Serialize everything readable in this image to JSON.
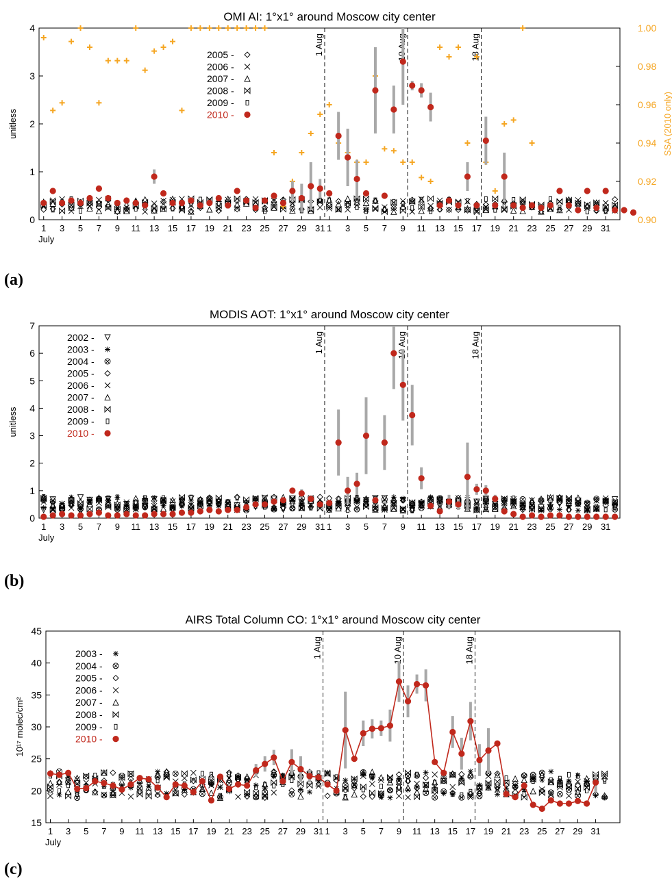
{
  "figure": {
    "panel_labels": [
      "(a)",
      "(b)",
      "(c)"
    ],
    "colors": {
      "red_2010": "#c0281c",
      "ssa_orange": "#f5a623",
      "errorbar_grey": "#a8a8a8",
      "axis": "#000000"
    }
  },
  "chart_data": [
    {
      "type": "scatter",
      "title": "OMI AI: 1°x1° around Moscow city center",
      "ylabel": "unitless",
      "y2label": "SSA (2010 only)",
      "ylim": [
        0,
        4
      ],
      "y2lim": [
        0.9,
        1.0
      ],
      "y_ticks": [
        "0",
        "1",
        "2",
        "3",
        "4"
      ],
      "y2_ticks": [
        "0.90",
        "0.92",
        "0.94",
        "0.96",
        "0.98",
        "1.00"
      ],
      "x_ticks": [
        "1",
        "3",
        "5",
        "7",
        "9",
        "11",
        "13",
        "15",
        "17",
        "19",
        "21",
        "23",
        "25",
        "27",
        "29",
        "31",
        "1",
        "3",
        "5",
        "7",
        "9",
        "11",
        "13",
        "15",
        "17",
        "19",
        "21",
        "23",
        "25",
        "27",
        "29",
        "31"
      ],
      "x_sub": "July",
      "event_lines": [
        "1 Aug",
        "10 Aug",
        "18 Aug"
      ],
      "legend": [
        {
          "year": "2005",
          "symbol": "◇"
        },
        {
          "year": "2006",
          "symbol": "X"
        },
        {
          "year": "2007",
          "symbol": "△"
        },
        {
          "year": "2008",
          "symbol": "⋈"
        },
        {
          "year": "2009",
          "symbol": "▯"
        },
        {
          "year": "2010",
          "symbol": "●"
        }
      ],
      "series_2010": [
        0.35,
        0.6,
        0.35,
        0.4,
        0.35,
        0.45,
        0.65,
        0.45,
        0.35,
        0.4,
        0.35,
        0.3,
        0.9,
        0.55,
        0.35,
        0.35,
        0.4,
        0.3,
        0.35,
        0.45,
        0.3,
        0.6,
        0.4,
        0.25,
        0.4,
        0.5,
        0.35,
        0.6,
        0.45,
        0.7,
        0.65,
        0.55,
        1.75,
        1.3,
        0.85,
        0.55,
        2.7,
        0.5,
        2.3,
        3.3,
        2.8,
        2.7,
        2.35,
        0.3,
        0.4,
        0.3,
        0.9,
        0.3,
        1.65,
        0.3,
        0.9,
        0.3,
        0.25,
        0.3,
        0.25,
        0.3,
        0.6,
        0.3,
        0.2,
        0.6,
        0.25,
        0.6,
        0.2,
        0.2,
        0.15
      ],
      "err_2010": [
        0,
        0,
        0,
        0,
        0,
        0,
        0,
        0,
        0,
        0,
        0,
        0,
        0.15,
        0,
        0,
        0,
        0,
        0,
        0,
        0,
        0,
        0,
        0,
        0,
        0,
        0,
        0,
        0.2,
        0.3,
        0.5,
        0.2,
        0,
        0.5,
        0.6,
        0.4,
        0,
        0.9,
        0,
        0.5,
        0.9,
        0.1,
        0.15,
        0.3,
        0,
        0,
        0,
        0.3,
        0,
        0.5,
        0,
        0.5,
        0,
        0,
        0,
        0,
        0,
        0,
        0,
        0,
        0,
        0,
        0,
        0,
        0,
        0
      ],
      "ssa_2010": [
        0.995,
        0.957,
        0.961,
        0.993,
        1.0,
        0.99,
        0.961,
        0.983,
        0.983,
        0.983,
        1.0,
        0.978,
        0.988,
        0.99,
        0.993,
        0.957,
        1.0,
        1.0,
        1.0,
        1.0,
        1.0,
        1.0,
        1.0,
        1.0,
        1.0,
        0.935,
        0.907,
        0.92,
        0.935,
        0.945,
        0.955,
        0.96,
        0.94,
        0.935,
        0.93,
        0.93,
        0.975,
        0.937,
        0.936,
        0.93,
        0.93,
        0.922,
        0.92,
        0.99,
        0.985,
        0.99,
        0.94,
        0.985,
        0.93,
        0.915,
        0.95,
        0.952,
        1.0,
        0.94
      ],
      "others_max": 3.4
    },
    {
      "type": "scatter",
      "title": "MODIS AOT: 1°x1° around Moscow city center",
      "ylabel": "unitless",
      "ylim": [
        0,
        7
      ],
      "y_ticks": [
        "0",
        "1",
        "2",
        "3",
        "4",
        "5",
        "6",
        "7"
      ],
      "x_ticks": [
        "1",
        "3",
        "5",
        "7",
        "9",
        "11",
        "13",
        "15",
        "17",
        "19",
        "21",
        "23",
        "25",
        "27",
        "29",
        "31",
        "1",
        "3",
        "5",
        "7",
        "9",
        "11",
        "13",
        "15",
        "17",
        "19",
        "21",
        "23",
        "25",
        "27",
        "29",
        "31"
      ],
      "x_sub": "July",
      "event_lines": [
        "1 Aug",
        "10 Aug",
        "18 Aug"
      ],
      "legend": [
        {
          "year": "2002",
          "symbol": "▽"
        },
        {
          "year": "2003",
          "symbol": "✱"
        },
        {
          "year": "2004",
          "symbol": "⊗"
        },
        {
          "year": "2005",
          "symbol": "◇"
        },
        {
          "year": "2006",
          "symbol": "X"
        },
        {
          "year": "2007",
          "symbol": "△"
        },
        {
          "year": "2008",
          "symbol": "⋈"
        },
        {
          "year": "2009",
          "symbol": "▯"
        },
        {
          "year": "2010",
          "symbol": "●"
        }
      ],
      "series_2010": [
        0.05,
        0.1,
        0.15,
        0.1,
        0.1,
        0.15,
        0.2,
        0.1,
        0.1,
        0.15,
        0.1,
        0.1,
        0.15,
        0.15,
        0.15,
        0.2,
        0.2,
        0.25,
        0.3,
        0.25,
        0.3,
        0.3,
        0.4,
        0.5,
        0.5,
        0.6,
        0.65,
        1.0,
        0.9,
        0.7,
        0.5,
        0.55,
        2.75,
        1.0,
        1.25,
        3.0,
        0.65,
        2.75,
        6.0,
        4.85,
        3.75,
        1.45,
        0.45,
        0.25,
        0.6,
        0.5,
        1.5,
        1.05,
        1.0,
        0.7,
        0.25,
        0.15,
        0.05,
        0.1,
        0.05,
        0.1,
        0.1,
        0.05,
        0.05,
        0.05,
        0.05,
        0.05,
        0.05
      ],
      "err_2010": [
        0,
        0,
        0,
        0,
        0,
        0,
        0,
        0,
        0,
        0,
        0,
        0,
        0,
        0,
        0,
        0,
        0,
        0,
        0,
        0,
        0,
        0,
        0,
        0,
        0,
        0,
        0,
        0.1,
        0.15,
        0,
        0,
        0,
        1.2,
        0.5,
        0.4,
        1.4,
        0,
        1.0,
        1.3,
        1.3,
        1.1,
        0.4,
        0,
        0,
        0.25,
        0.2,
        1.25,
        0.2,
        0.2,
        0.15,
        0,
        0,
        0,
        0,
        0,
        0,
        0,
        0,
        0,
        0,
        0,
        0,
        0
      ],
      "others_max": 2.0
    },
    {
      "type": "line",
      "title": "AIRS Total Column CO: 1°x1° around Moscow city center",
      "ylabel": "10¹⁷ molec/cm²",
      "ylim": [
        15,
        45
      ],
      "y_ticks": [
        "15",
        "20",
        "25",
        "30",
        "35",
        "40",
        "45"
      ],
      "x_ticks": [
        "1",
        "3",
        "5",
        "7",
        "9",
        "11",
        "13",
        "15",
        "17",
        "19",
        "21",
        "23",
        "25",
        "27",
        "29",
        "31",
        "1",
        "3",
        "5",
        "7",
        "9",
        "11",
        "13",
        "15",
        "17",
        "19",
        "21",
        "23",
        "25",
        "27",
        "29",
        "31"
      ],
      "x_sub": "July",
      "event_lines": [
        "1 Aug",
        "10 Aug",
        "18 Aug"
      ],
      "legend": [
        {
          "year": "2003",
          "symbol": "✱"
        },
        {
          "year": "2004",
          "symbol": "⊗"
        },
        {
          "year": "2005",
          "symbol": "◇"
        },
        {
          "year": "2006",
          "symbol": "X"
        },
        {
          "year": "2007",
          "symbol": "△"
        },
        {
          "year": "2008",
          "symbol": "⋈"
        },
        {
          "year": "2009",
          "symbol": "▯"
        },
        {
          "year": "2010",
          "symbol": "●"
        }
      ],
      "series_2010": [
        22.7,
        22.5,
        22.8,
        20.3,
        20.4,
        21.5,
        21.2,
        20.8,
        20.2,
        21.0,
        22.0,
        21.8,
        20.5,
        19.0,
        21.0,
        20.8,
        19.8,
        21.5,
        18.5,
        22.2,
        20.3,
        21.0,
        20.8,
        23.2,
        24.2,
        25.2,
        21.5,
        24.5,
        23.4,
        22.3,
        22.1,
        21.0,
        20.0,
        29.5,
        25.0,
        29.0,
        29.7,
        29.8,
        30.2,
        37.1,
        34.0,
        36.7,
        36.5,
        24.5,
        22.8,
        29.2,
        25.8,
        30.9,
        24.8,
        26.3,
        27.4,
        19.5,
        19.0,
        20.8,
        17.8,
        17.2,
        18.5,
        18.0,
        18.0,
        18.4,
        18.0,
        21.3
      ],
      "err_2010": [
        0,
        0,
        0,
        0,
        0,
        0,
        0,
        0,
        0,
        0,
        0,
        0,
        0,
        0,
        0,
        0,
        0,
        0,
        0,
        0,
        0,
        0,
        0,
        1.0,
        1.2,
        1.2,
        0,
        2.0,
        2.0,
        1.0,
        0,
        0,
        0,
        6.0,
        0,
        2.0,
        1.5,
        1.2,
        2.5,
        3.2,
        2.5,
        1.5,
        2.5,
        0,
        0,
        2.5,
        2.5,
        3.0,
        2.5,
        3.5,
        0,
        0,
        0,
        0,
        0,
        0,
        0,
        0,
        0,
        0,
        0,
        1.5
      ],
      "others_max": 28.5
    }
  ]
}
